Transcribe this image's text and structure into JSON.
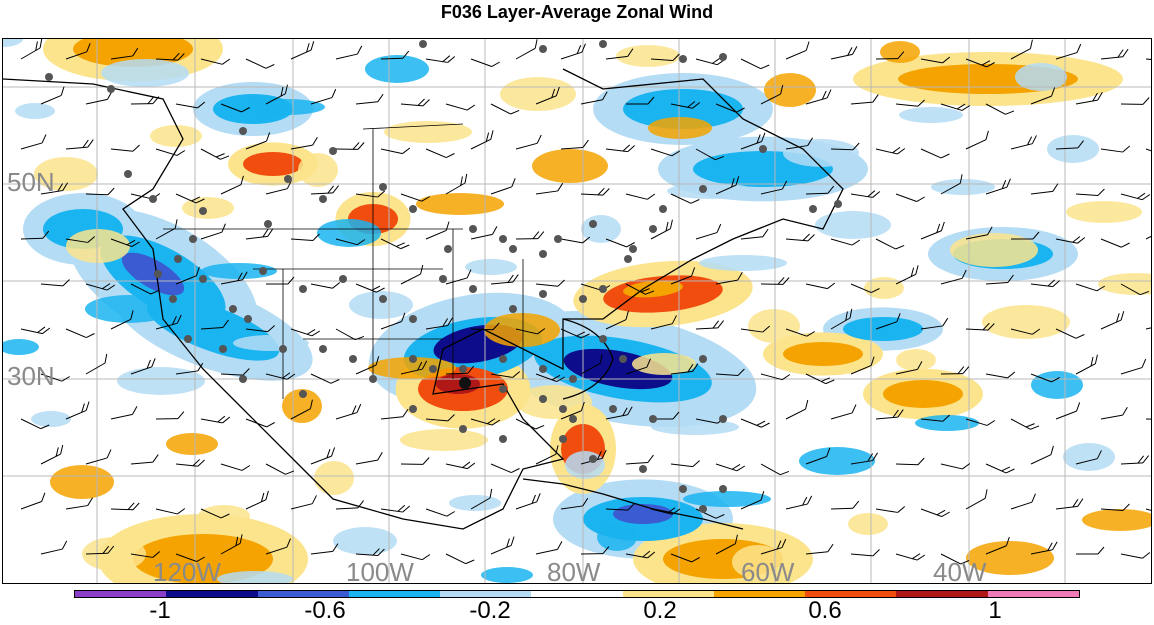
{
  "title": "F036 Layer-Average Zonal Wind",
  "longitude_labels": [
    "120W",
    "100W",
    "80W",
    "60W",
    "40W"
  ],
  "latitude_labels": [
    "50N",
    "30N"
  ],
  "colorbar": {
    "colors": [
      "#8a3fc6",
      "#0d0d8c",
      "#3a5bd1",
      "#1ab4f0",
      "#b4dcf5",
      "#ffffff",
      "#fbe48c",
      "#f5a300",
      "#f04d0f",
      "#b01818",
      "#ee7ab8"
    ],
    "tick_labels": [
      "-1",
      "-0.6",
      "-0.2",
      "0.2",
      "0.6",
      "1"
    ]
  },
  "colors": {
    "grid": "#b8b8b8",
    "coastline": "#000000",
    "station": "#555555",
    "barb": "#000000"
  }
}
